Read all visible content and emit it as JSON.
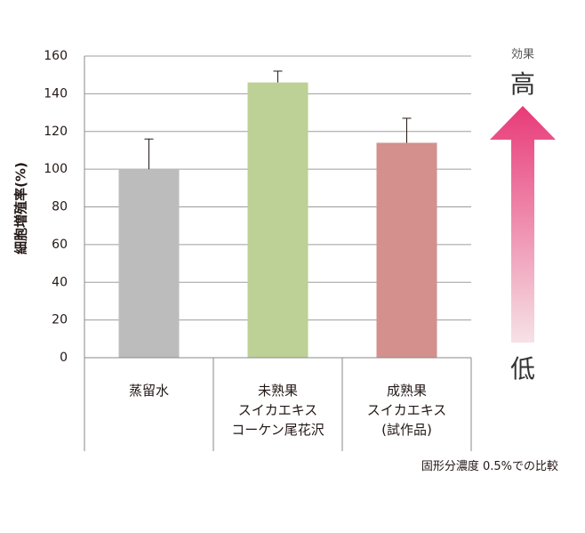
{
  "chart_data": {
    "type": "bar",
    "title": "",
    "ylabel": "細胞増殖率(%)",
    "xlabel": "",
    "ylim": [
      0,
      160
    ],
    "yticks": [
      0,
      20,
      40,
      60,
      80,
      100,
      120,
      140,
      160
    ],
    "grid": true,
    "categories": [
      {
        "lines": [
          "蒸留水"
        ]
      },
      {
        "lines": [
          "未熟果",
          "スイカエキス",
          "コーケン尾花沢"
        ]
      },
      {
        "lines": [
          "成熟果",
          "スイカエキス",
          "(試作品)"
        ]
      }
    ],
    "values": [
      100,
      146,
      114
    ],
    "errors": [
      16,
      6,
      13
    ],
    "colors": [
      "#bdbcbc",
      "#bdd096",
      "#d3908c"
    ],
    "note": "固形分濃度 0.5%での比較"
  },
  "arrow": {
    "caption_small": "効果",
    "top_label": "高",
    "bottom_label": "低",
    "color_top": "#e83a78",
    "color_bottom": "#f6e2e6"
  }
}
